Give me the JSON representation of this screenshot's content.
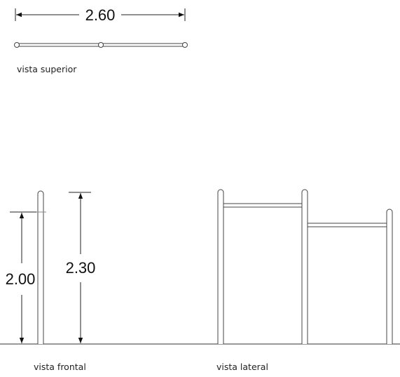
{
  "dimensions": {
    "top_width": "2.60",
    "front_height_low": "2.00",
    "front_height_high": "2.30"
  },
  "captions": {
    "top_view": "vista superior",
    "front_view": "vista frontal",
    "side_view": "vista lateral"
  }
}
